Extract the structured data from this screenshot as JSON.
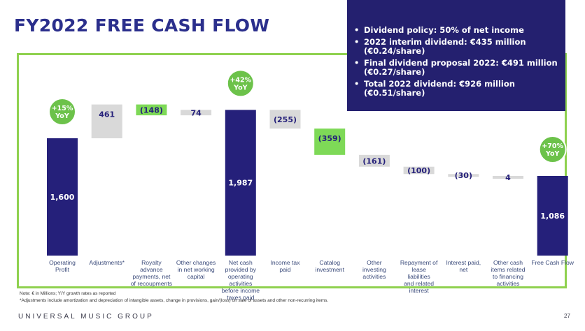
{
  "title": "FY2022 FREE CASH FLOW",
  "callout": {
    "items": [
      "Dividend policy: 50% of net income",
      "2022 interim dividend: €435 million (€0.24/share)",
      "Final dividend proposal 2022: €491 million (€0.27/share)",
      "Total 2022 dividend: €926 million (€0.51/share)"
    ]
  },
  "chart_data": {
    "type": "bar",
    "subtype": "waterfall",
    "unit": "€ in Millions",
    "categories": [
      "Operating Profit",
      "Adjustments*",
      "Royalty advance payments, net of recoupments",
      "Other changes in net working capital",
      "Net cash provided by operating activities before income taxes paid",
      "Income tax paid",
      "Catalog investment",
      "Other investing activities",
      "Repayment of lease liabilities and related interest",
      "Interest paid, net",
      "Other cash items related to financing activities",
      "Free Cash Flow"
    ],
    "values": [
      1600,
      461,
      -148,
      74,
      1987,
      -255,
      -359,
      -161,
      -100,
      -30,
      4,
      1086
    ],
    "value_labels": [
      "1,600",
      "461",
      "(148)",
      "74",
      "1,987",
      "(255)",
      "(359)",
      "(161)",
      "(100)",
      "(30)",
      "4",
      "1,086"
    ],
    "bar_kinds": [
      "total",
      "delta",
      "delta",
      "delta",
      "total",
      "delta",
      "delta",
      "delta",
      "delta",
      "delta",
      "delta",
      "total"
    ],
    "bar_colors": [
      "#25207a",
      "#d9d9d9",
      "#7ed957",
      "#d9d9d9",
      "#25207a",
      "#d9d9d9",
      "#7ed957",
      "#d9d9d9",
      "#d9d9d9",
      "#d9d9d9",
      "#d9d9d9",
      "#25207a"
    ],
    "yoy_badges": [
      {
        "bar": 0,
        "text": "+15% YoY"
      },
      {
        "bar": 4,
        "text": "+42% YoY"
      },
      {
        "bar": 11,
        "text": "+70% YoY"
      }
    ],
    "ylim": [
      0,
      2100
    ]
  },
  "colors": {
    "navy": "#25207a",
    "green": "#7ed957",
    "grey": "#d9d9d9",
    "frame": "#8fd14f"
  },
  "footnotes": {
    "note": "Note: € in Millions; Y/Y growth rates as reported",
    "adjustments": "*Adjustments include amortization and depreciation of intangible assets, change in provisions, gain/(loss) on sale of assets and other non-recurring items."
  },
  "footer": {
    "brand": "UNIVERSAL MUSIC GROUP",
    "page": "27"
  }
}
